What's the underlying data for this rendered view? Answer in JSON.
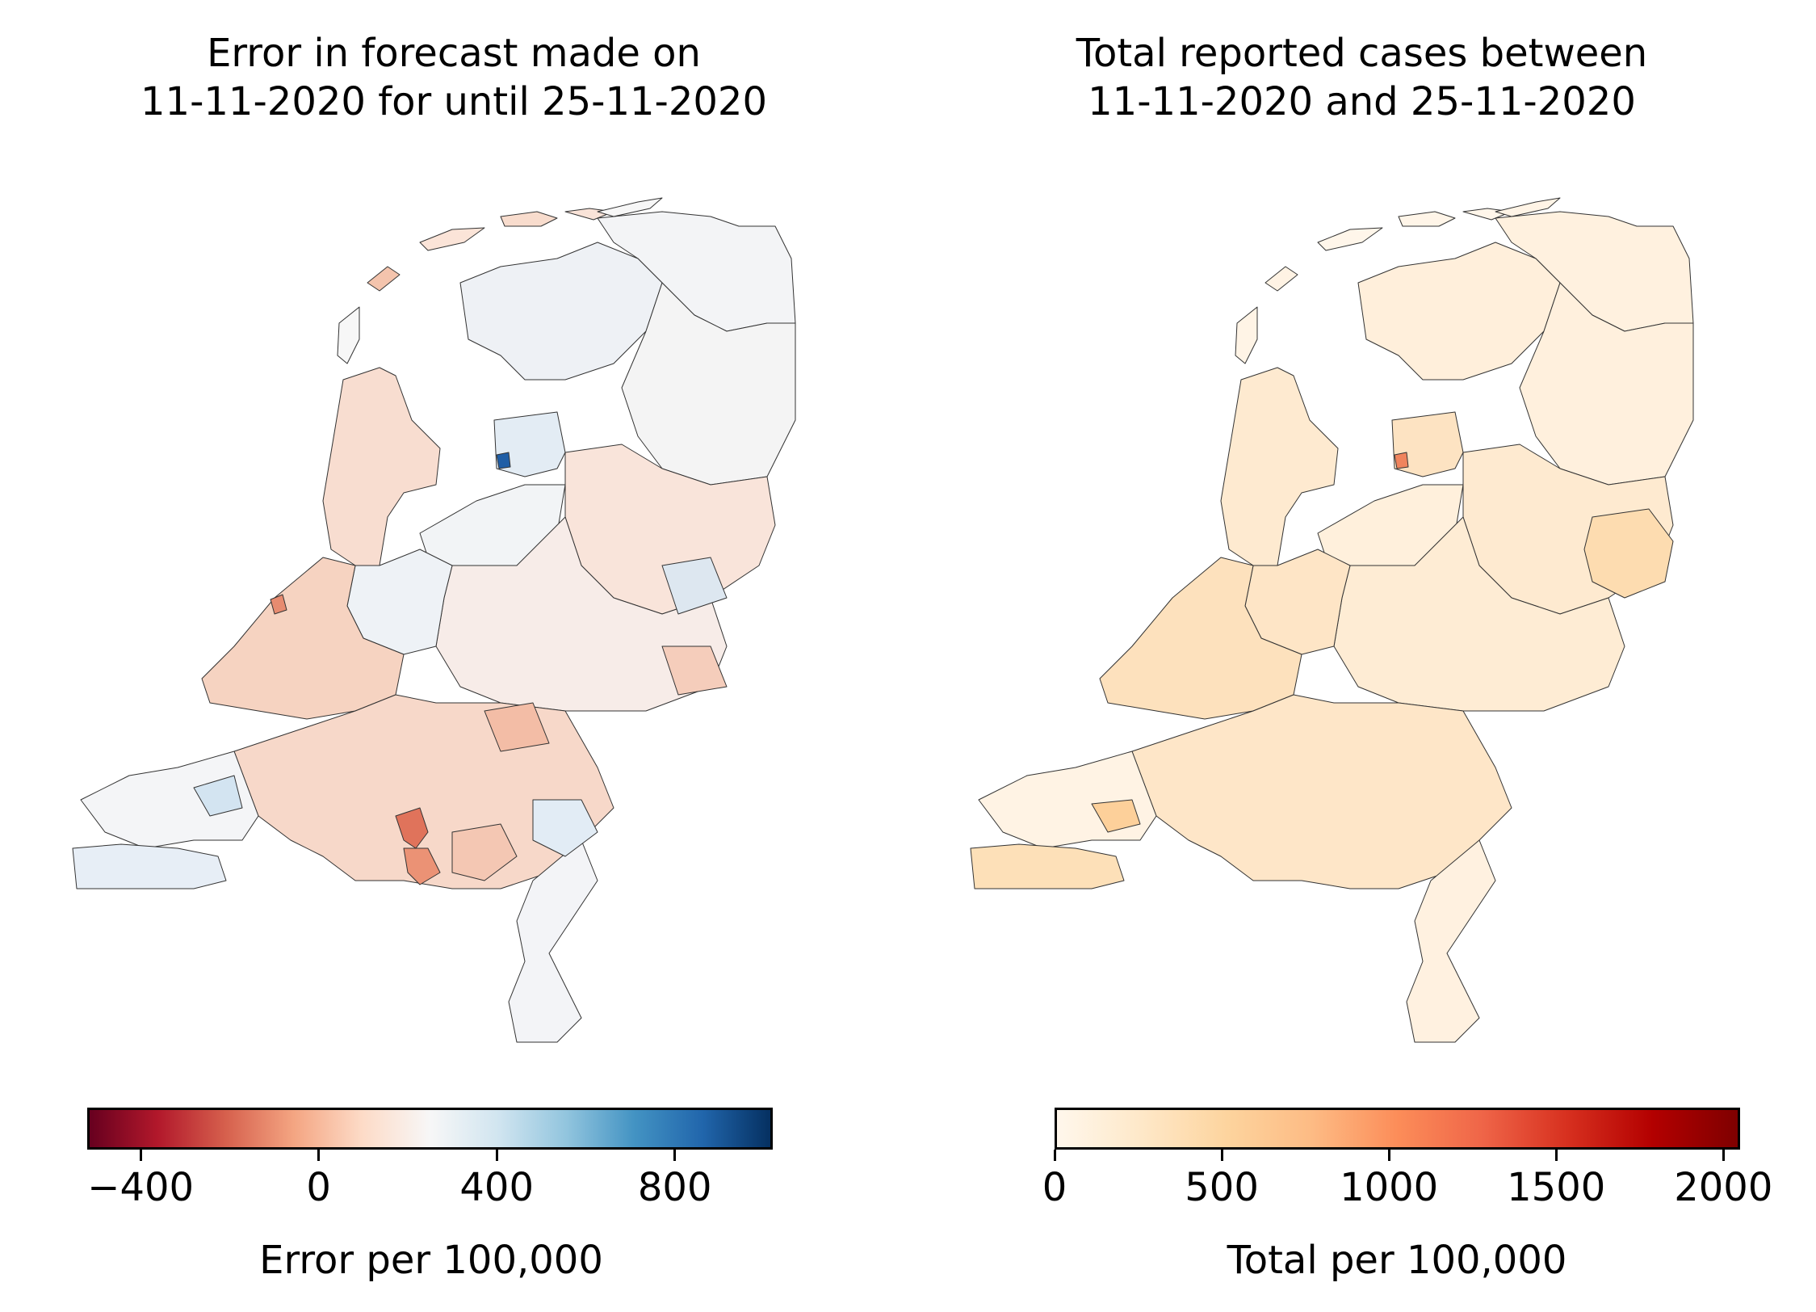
{
  "figure": {
    "left": {
      "title_line1": "Error in forecast made on",
      "title_line2": "11-11-2020 for until 25-11-2020",
      "colorbar": {
        "label": "Error per 100,000",
        "colormap": "RdBu",
        "range": [
          -520,
          1020
        ],
        "ticks": [
          {
            "value": -400,
            "label": "−400"
          },
          {
            "value": 0,
            "label": "0"
          },
          {
            "value": 400,
            "label": "400"
          },
          {
            "value": 800,
            "label": "800"
          }
        ],
        "colors": [
          "#67001f",
          "#b2182b",
          "#d6604d",
          "#f4a582",
          "#fddbc7",
          "#f7f7f7",
          "#d1e5f0",
          "#92c5de",
          "#4393c3",
          "#2166ac",
          "#053061"
        ]
      }
    },
    "right": {
      "title_line1": "Total reported cases between",
      "title_line2": "11-11-2020 and 25-11-2020",
      "colorbar": {
        "label": "Total per 100,000",
        "colormap": "OrRd",
        "range": [
          0,
          2050
        ],
        "ticks": [
          {
            "value": 0,
            "label": "0"
          },
          {
            "value": 500,
            "label": "500"
          },
          {
            "value": 1000,
            "label": "1000"
          },
          {
            "value": 1500,
            "label": "1500"
          },
          {
            "value": 2000,
            "label": "2000"
          }
        ],
        "colors": [
          "#fff7ec",
          "#fee8c8",
          "#fdd49e",
          "#fdbb84",
          "#fc8d59",
          "#ef6548",
          "#d7301f",
          "#b30000",
          "#7f0000"
        ]
      }
    }
  }
}
